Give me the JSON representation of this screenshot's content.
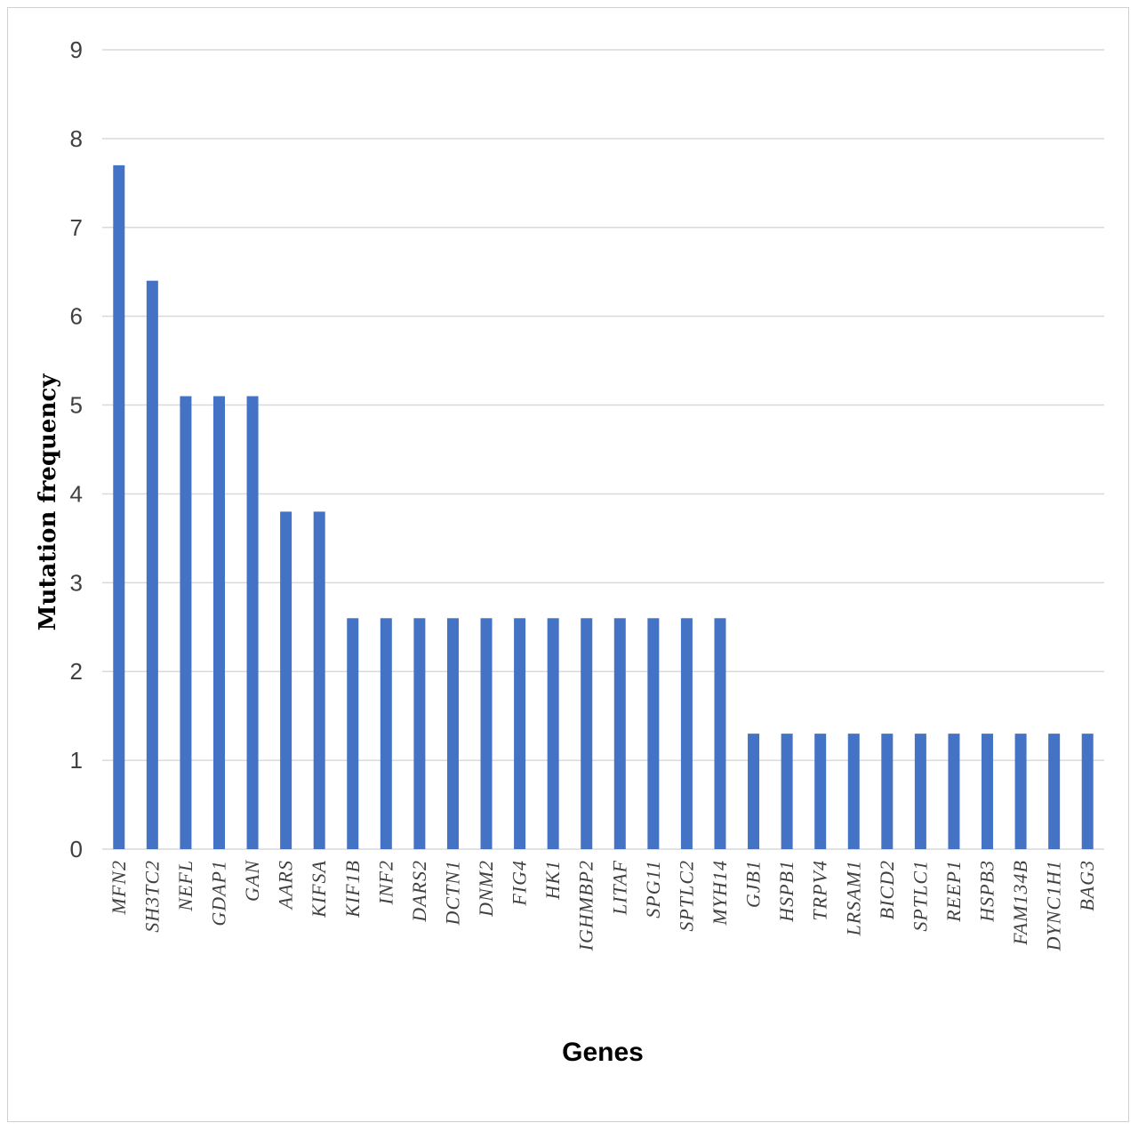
{
  "chart_data": {
    "type": "bar",
    "title": "",
    "xlabel": "Genes",
    "ylabel": "Mutation frequency",
    "ylim": [
      0,
      9
    ],
    "yticks": [
      0,
      1,
      2,
      3,
      4,
      5,
      6,
      7,
      8,
      9
    ],
    "grid": true,
    "legend": "none",
    "bar_color": "#4472C4",
    "categories": [
      "MFN2",
      "SH3TC2",
      "NEFL",
      "GDAP1",
      "GAN",
      "AARS",
      "KIFSA",
      "KIF1B",
      "INF2",
      "DARS2",
      "DCTN1",
      "DNM2",
      "FIG4",
      "HK1",
      "IGHMBP2",
      "LITAF",
      "SPG11",
      "SPTLC2",
      "MYH14",
      "GJB1",
      "HSPB1",
      "TRPV4",
      "LRSAM1",
      "BICD2",
      "SPTLC1",
      "REEP1",
      "HSPB3",
      "FAM134B",
      "DYNC1H1",
      "BAG3"
    ],
    "values": [
      7.7,
      6.4,
      5.1,
      5.1,
      5.1,
      3.8,
      3.8,
      2.6,
      2.6,
      2.6,
      2.6,
      2.6,
      2.6,
      2.6,
      2.6,
      2.6,
      2.6,
      2.6,
      2.6,
      1.3,
      1.3,
      1.3,
      1.3,
      1.3,
      1.3,
      1.3,
      1.3,
      1.3,
      1.3,
      1.3
    ]
  }
}
